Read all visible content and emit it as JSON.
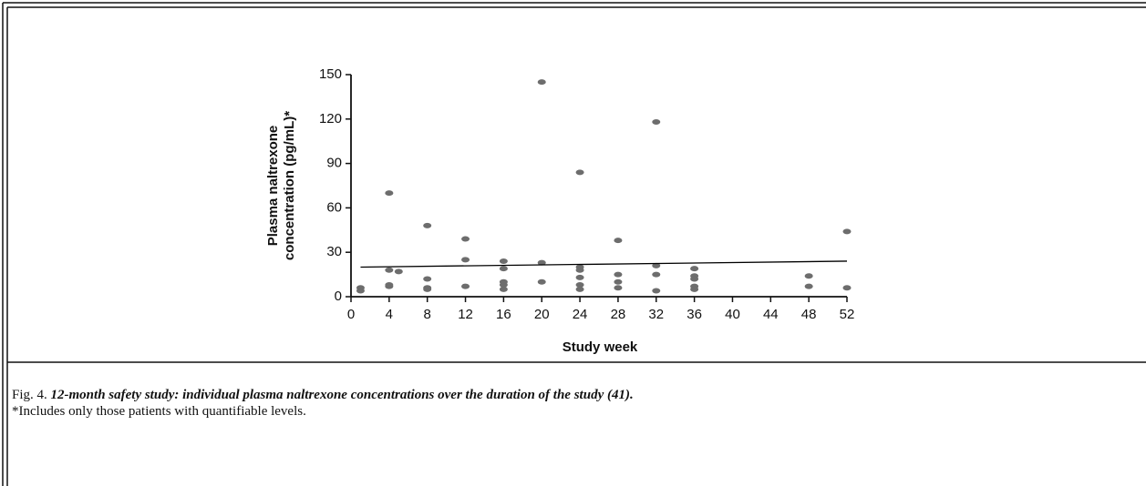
{
  "chart_data": {
    "type": "scatter",
    "ylabel": [
      "Plasma naltrexone",
      "concentration (pg/mL)*"
    ],
    "xlabel": "Study week",
    "xlim": [
      0,
      52
    ],
    "xticks": [
      0,
      4,
      8,
      12,
      16,
      20,
      24,
      28,
      32,
      36,
      40,
      44,
      48,
      52
    ],
    "ylim": [
      0,
      150
    ],
    "yticks": [
      0,
      30,
      60,
      90,
      120,
      150
    ],
    "series": [
      {
        "color": "#6d6d6d",
        "x": [
          1,
          1,
          4,
          4,
          4,
          4,
          5,
          8,
          8,
          8,
          8,
          12,
          12,
          12,
          16,
          16,
          16,
          16,
          16,
          20,
          20,
          20,
          24,
          24,
          24,
          24,
          24,
          24,
          28,
          28,
          28,
          28,
          32,
          32,
          32,
          32,
          36,
          36,
          36,
          36,
          36,
          48,
          48,
          52,
          52
        ],
        "values": [
          6,
          4,
          70,
          18,
          8,
          7,
          17,
          48,
          12,
          6,
          5,
          39,
          25,
          7,
          24,
          19,
          10,
          8,
          5,
          145,
          23,
          10,
          84,
          20,
          18,
          13,
          8,
          5,
          38,
          15,
          10,
          6,
          118,
          21,
          15,
          4,
          19,
          14,
          12,
          7,
          5,
          14,
          7,
          44,
          6
        ]
      }
    ],
    "trendline": {
      "color": "#000000",
      "x": [
        1,
        52
      ],
      "y": [
        20,
        24
      ]
    }
  },
  "caption": {
    "label": "Fig. 4.",
    "text": "12-month safety study: individual plasma naltrexone concentrations over the duration of the study (41).",
    "note": "*Includes only those patients with quantifiable levels."
  }
}
